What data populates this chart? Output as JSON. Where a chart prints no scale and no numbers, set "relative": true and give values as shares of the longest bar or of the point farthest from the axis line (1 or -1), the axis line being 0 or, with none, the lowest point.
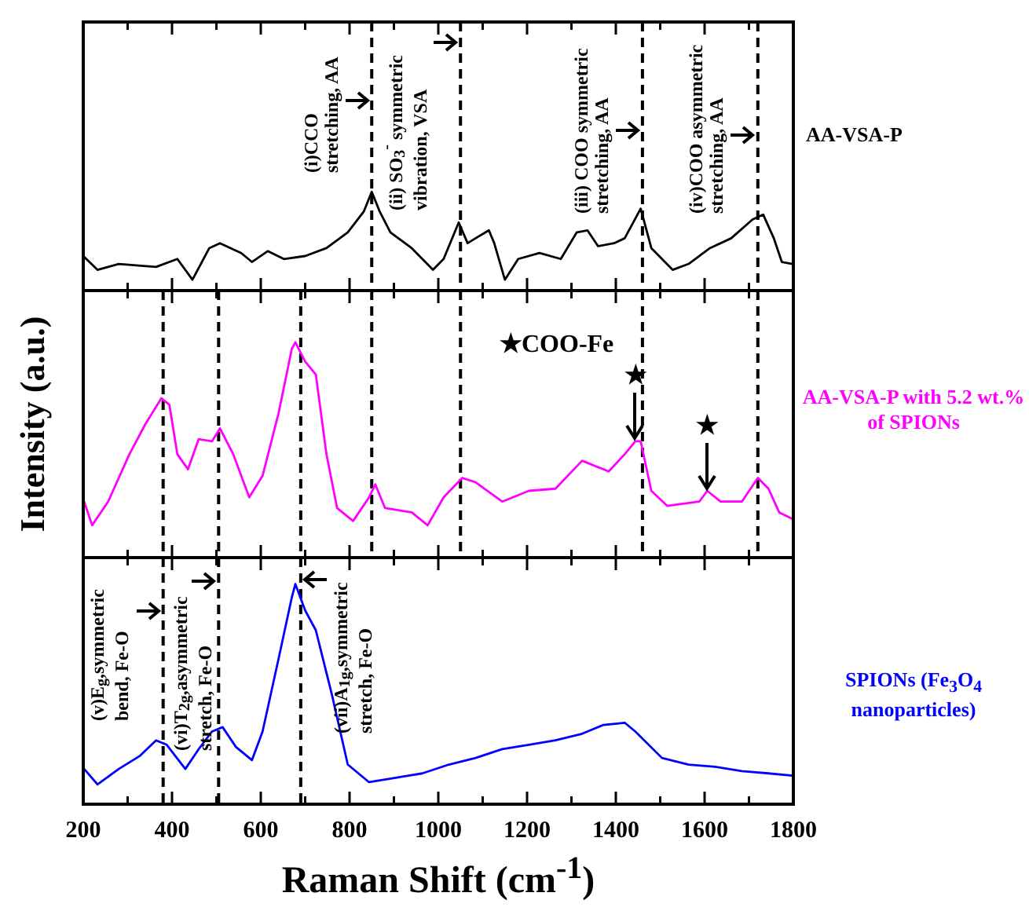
{
  "chart_data": [
    {
      "type": "line",
      "relative": true,
      "xlim": [
        200,
        1800
      ],
      "xticks": [
        200,
        {
          "value": 300,
          "label": null
        },
        400,
        {
          "value": 500,
          "label": null
        },
        600,
        {
          "value": 700,
          "label": null
        },
        800,
        {
          "value": 900,
          "label": null
        },
        1000,
        {
          "value": 1100,
          "label": null
        },
        1200,
        {
          "value": 1300,
          "label": null
        },
        1400,
        {
          "value": 1500,
          "label": null
        },
        1600,
        {
          "value": 1700,
          "label": null
        },
        1800
      ],
      "tick_labels": false,
      "series": [
        {
          "name": "AA-VSA-P",
          "color": "#000000",
          "x": [
            200,
            232,
            280,
            364,
            412,
            446,
            484,
            508,
            556,
            580,
            616,
            652,
            700,
            748,
            796,
            832,
            850,
            868,
            892,
            940,
            988,
            1012,
            1046,
            1066,
            1084,
            1114,
            1126,
            1150,
            1180,
            1228,
            1276,
            1312,
            1336,
            1360,
            1396,
            1420,
            1456,
            1480,
            1528,
            1564,
            1612,
            1660,
            1708,
            1732,
            1756,
            1774,
            1798
          ],
          "values": [
            0.35,
            0.21,
            0.27,
            0.24,
            0.32,
            0.11,
            0.43,
            0.48,
            0.38,
            0.29,
            0.4,
            0.32,
            0.35,
            0.43,
            0.59,
            0.8,
            1.0,
            0.8,
            0.59,
            0.43,
            0.21,
            0.32,
            0.69,
            0.48,
            0.53,
            0.61,
            0.48,
            0.11,
            0.32,
            0.38,
            0.32,
            0.59,
            0.61,
            0.45,
            0.48,
            0.53,
            0.83,
            0.43,
            0.21,
            0.27,
            0.43,
            0.53,
            0.72,
            0.77,
            0.53,
            0.29,
            0.27
          ]
        }
      ],
      "ref_lines": [
        {
          "axis": "x",
          "value": 850,
          "color": "#000000",
          "line_style": "dashed"
        },
        {
          "axis": "x",
          "value": 1050,
          "color": "#000000",
          "line_style": "dashed"
        },
        {
          "axis": "x",
          "value": 1460,
          "color": "#000000",
          "line_style": "dashed"
        },
        {
          "axis": "x",
          "value": 1720,
          "color": "#000000",
          "line_style": "dashed"
        }
      ],
      "annotations": [
        {
          "text": "(i)CCO stretching, AA",
          "x": 850,
          "y": 1.92
        },
        {
          "text": "(ii) SO$_{3}$$^{-}$ symmetric vibration, VSA",
          "x": 1050,
          "y": 2.51
        },
        {
          "text": "(iii) COO symmetric stretching, AA",
          "x": 1460,
          "y": 1.62
        },
        {
          "text": "(iv)COO asymmetric stretching, AA",
          "x": 1720,
          "y": 1.58
        }
      ]
    },
    {
      "type": "line",
      "relative": true,
      "xlim": [
        200,
        1800
      ],
      "xticks": [
        200,
        {
          "value": 300,
          "label": null
        },
        400,
        {
          "value": 500,
          "label": null
        },
        600,
        {
          "value": 700,
          "label": null
        },
        800,
        {
          "value": 900,
          "label": null
        },
        1000,
        {
          "value": 1100,
          "label": null
        },
        1200,
        {
          "value": 1300,
          "label": null
        },
        1400,
        {
          "value": 1500,
          "label": null
        },
        1600,
        {
          "value": 1700,
          "label": null
        },
        1800
      ],
      "tick_labels": false,
      "ylabel": "Intensity (a.u.)",
      "series": [
        {
          "name": "AA-VSA-P with 5.2 wt.% of SPIONs",
          "color": "#ff00ff",
          "x": [
            202,
            220,
            256,
            304,
            340,
            376,
            394,
            412,
            436,
            460,
            490,
            508,
            538,
            574,
            604,
            640,
            670,
            678,
            700,
            724,
            748,
            772,
            808,
            844,
            858,
            880,
            940,
            976,
            1012,
            1054,
            1084,
            1144,
            1204,
            1264,
            1324,
            1384,
            1420,
            1444,
            1456,
            1480,
            1516,
            1588,
            1606,
            1636,
            1684,
            1720,
            1744,
            1768,
            1798
          ],
          "values": [
            0.26,
            0.15,
            0.26,
            0.48,
            0.62,
            0.74,
            0.71,
            0.48,
            0.41,
            0.55,
            0.54,
            0.6,
            0.48,
            0.28,
            0.38,
            0.67,
            0.97,
            1.0,
            0.91,
            0.85,
            0.48,
            0.23,
            0.17,
            0.28,
            0.34,
            0.23,
            0.21,
            0.15,
            0.28,
            0.37,
            0.35,
            0.26,
            0.31,
            0.32,
            0.45,
            0.4,
            0.48,
            0.54,
            0.54,
            0.31,
            0.24,
            0.26,
            0.31,
            0.26,
            0.26,
            0.37,
            0.32,
            0.21,
            0.18
          ]
        }
      ],
      "ref_lines": [
        {
          "axis": "x",
          "value": 380,
          "color": "#000000",
          "line_style": "dashed"
        },
        {
          "axis": "x",
          "value": 505,
          "color": "#000000",
          "line_style": "dashed"
        },
        {
          "axis": "x",
          "value": 690,
          "color": "#000000",
          "line_style": "dashed"
        },
        {
          "axis": "x",
          "value": 850,
          "color": "#000000",
          "line_style": "dashed"
        },
        {
          "axis": "x",
          "value": 1050,
          "color": "#000000",
          "line_style": "dashed"
        },
        {
          "axis": "x",
          "value": 1460,
          "color": "#000000",
          "line_style": "dashed"
        },
        {
          "axis": "x",
          "value": 1720,
          "color": "#000000",
          "line_style": "dashed"
        }
      ],
      "annotations": [
        "★COO-Fe",
        {
          "text": "★",
          "x": 1444,
          "y": 0.54
        },
        {
          "text": "★",
          "x": 1606,
          "y": 0.31
        }
      ]
    },
    {
      "type": "line",
      "relative": true,
      "xlim": [
        200,
        1800
      ],
      "xticks": [
        200,
        {
          "value": 300,
          "label": null
        },
        400,
        {
          "value": 500,
          "label": null
        },
        600,
        {
          "value": 700,
          "label": null
        },
        800,
        {
          "value": 900,
          "label": null
        },
        1000,
        {
          "value": 1100,
          "label": null
        },
        1200,
        {
          "value": 1300,
          "label": null
        },
        1400,
        {
          "value": 1500,
          "label": null
        },
        1600,
        {
          "value": 1700,
          "label": null
        },
        1800
      ],
      "tick_labels": "x",
      "xlabel": "Raman Shift (cm$^{-1}$)",
      "series": [
        {
          "name": "SPIONs (Fe$_{3}$O$_{4}$ nanoparticles)",
          "color": "#0000ff",
          "x": [
            202,
            232,
            280,
            328,
            364,
            388,
            430,
            460,
            490,
            514,
            544,
            580,
            604,
            640,
            670,
            678,
            700,
            724,
            760,
            796,
            844,
            904,
            964,
            1024,
            1084,
            1144,
            1204,
            1264,
            1324,
            1372,
            1420,
            1444,
            1504,
            1564,
            1624,
            1684,
            1744,
            1798
          ],
          "values": [
            0.16,
            0.09,
            0.16,
            0.22,
            0.29,
            0.27,
            0.16,
            0.25,
            0.33,
            0.35,
            0.26,
            0.2,
            0.33,
            0.66,
            0.94,
            1.0,
            0.88,
            0.79,
            0.5,
            0.18,
            0.1,
            0.12,
            0.14,
            0.18,
            0.21,
            0.25,
            0.27,
            0.29,
            0.32,
            0.36,
            0.37,
            0.33,
            0.21,
            0.18,
            0.17,
            0.15,
            0.14,
            0.13
          ]
        }
      ],
      "ref_lines": [
        {
          "axis": "x",
          "value": 380,
          "color": "#000000",
          "line_style": "dashed"
        },
        {
          "axis": "x",
          "value": 505,
          "color": "#000000",
          "line_style": "dashed"
        },
        {
          "axis": "x",
          "value": 690,
          "color": "#000000",
          "line_style": "dashed"
        }
      ],
      "annotations": [
        {
          "text": "(v)E$_{g}$,symmetric bend, Fe-O",
          "x": 380,
          "y": 0.88
        },
        {
          "text": "(vi)T$_{2g}$,asymmetric stretch, Fe-O",
          "x": 505,
          "y": 1.01
        },
        {
          "text": "(vii)A$_{1g}$,symmetric stretch, Fe-O",
          "x": 690,
          "y": 1.02
        }
      ]
    }
  ]
}
